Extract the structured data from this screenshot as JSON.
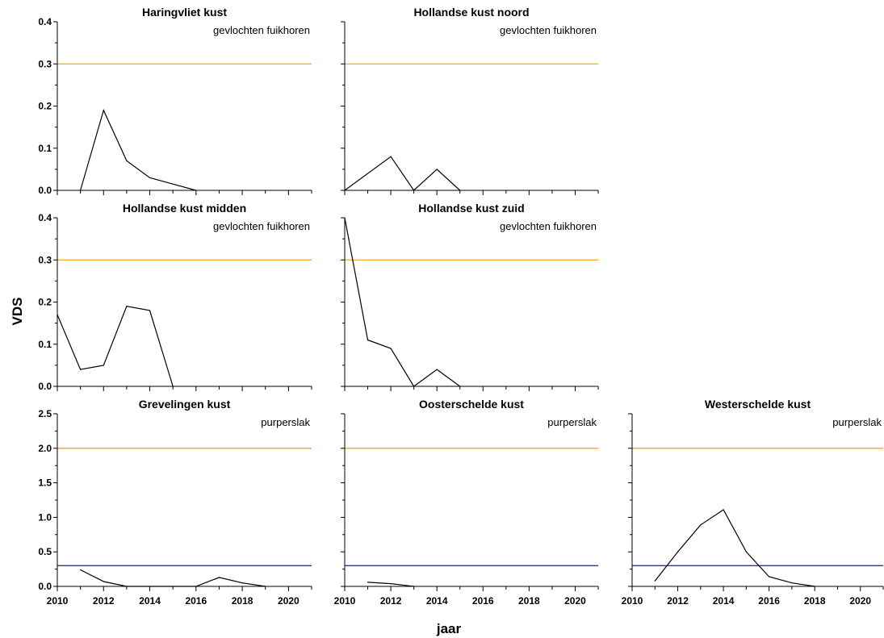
{
  "chart_data": {
    "type": "line",
    "ylabel": "VDS",
    "xlabel": "jaar",
    "xlim": [
      2010,
      2021
    ],
    "x_ticks": [
      2010,
      2012,
      2014,
      2016,
      2018,
      2020
    ],
    "colors": {
      "series": "#000000",
      "threshold_upper": "#f5a623",
      "threshold_lower": "#2b2bcf"
    },
    "panels": [
      {
        "title": "Haringvliet kust",
        "species": "gevlochten fuikhoren",
        "ylim": [
          0,
          0.4
        ],
        "y_ticks": [
          "0.0",
          "0.1",
          "0.2",
          "0.3",
          "0.4"
        ],
        "thresholds": [
          {
            "value": 0.3,
            "color": "#f5a623"
          }
        ],
        "x": [
          2011,
          2012,
          2013,
          2014,
          2015,
          2016
        ],
        "values": [
          0.0,
          0.19,
          0.07,
          0.03,
          0.015,
          0.0
        ]
      },
      {
        "title": "Hollandse kust noord",
        "species": "gevlochten fuikhoren",
        "ylim": [
          0,
          0.4
        ],
        "y_ticks": [],
        "thresholds": [
          {
            "value": 0.3,
            "color": "#f5a623"
          }
        ],
        "x": [
          2010,
          2012,
          2013,
          2014,
          2015
        ],
        "values": [
          0.0,
          0.08,
          0.0,
          0.05,
          0.0
        ]
      },
      {
        "title": "Hollandse kust midden",
        "species": "gevlochten fuikhoren",
        "ylim": [
          0,
          0.4
        ],
        "y_ticks": [
          "0.0",
          "0.1",
          "0.2",
          "0.3",
          "0.4"
        ],
        "thresholds": [
          {
            "value": 0.3,
            "color": "#f5a623"
          }
        ],
        "x": [
          2010,
          2011,
          2012,
          2013,
          2014,
          2015
        ],
        "values": [
          0.17,
          0.04,
          0.05,
          0.19,
          0.18,
          0.0
        ]
      },
      {
        "title": "Hollandse kust zuid",
        "species": "gevlochten fuikhoren",
        "ylim": [
          0,
          0.4
        ],
        "y_ticks": [],
        "thresholds": [
          {
            "value": 0.3,
            "color": "#f5a623"
          }
        ],
        "x": [
          2010,
          2011,
          2012,
          2013,
          2014,
          2015
        ],
        "values": [
          0.4,
          0.11,
          0.09,
          0.0,
          0.04,
          0.0
        ]
      },
      {
        "title": "Grevelingen kust",
        "species": "purperslak",
        "ylim": [
          0,
          2.5
        ],
        "y_ticks": [
          "0.0",
          "0.5",
          "1.0",
          "1.5",
          "2.0",
          "2.5"
        ],
        "thresholds": [
          {
            "value": 2.0,
            "color": "#f5a623"
          },
          {
            "value": 0.3,
            "color": "#2b2bcf"
          }
        ],
        "x": [
          2011,
          2012,
          2013,
          2016,
          2017,
          2018,
          2019
        ],
        "values": [
          0.24,
          0.07,
          0.0,
          0.0,
          0.13,
          0.05,
          0.0
        ],
        "x_tick_labels": [
          "2010",
          "2012",
          "2014",
          "2016",
          "2018",
          "2020"
        ]
      },
      {
        "title": "Oosterschelde kust",
        "species": "purperslak",
        "ylim": [
          0,
          2.5
        ],
        "y_ticks": [],
        "thresholds": [
          {
            "value": 2.0,
            "color": "#f5a623"
          },
          {
            "value": 0.3,
            "color": "#2b2bcf"
          }
        ],
        "x": [
          2011,
          2012,
          2013
        ],
        "values": [
          0.06,
          0.04,
          0.0
        ],
        "x_tick_labels": [
          "2010",
          "2012",
          "2014",
          "2016",
          "2018",
          "2020"
        ]
      },
      {
        "title": "Westerschelde kust",
        "species": "purperslak",
        "ylim": [
          0,
          2.5
        ],
        "y_ticks": [],
        "thresholds": [
          {
            "value": 2.0,
            "color": "#f5a623"
          },
          {
            "value": 0.3,
            "color": "#2b2bcf"
          }
        ],
        "x": [
          2011,
          2012,
          2013,
          2014,
          2015,
          2016,
          2017,
          2018
        ],
        "values": [
          0.08,
          0.5,
          0.89,
          1.11,
          0.5,
          0.14,
          0.05,
          0.0
        ],
        "x_tick_labels": [
          "2010",
          "2012",
          "2014",
          "2016",
          "2018",
          "2020"
        ]
      }
    ]
  }
}
